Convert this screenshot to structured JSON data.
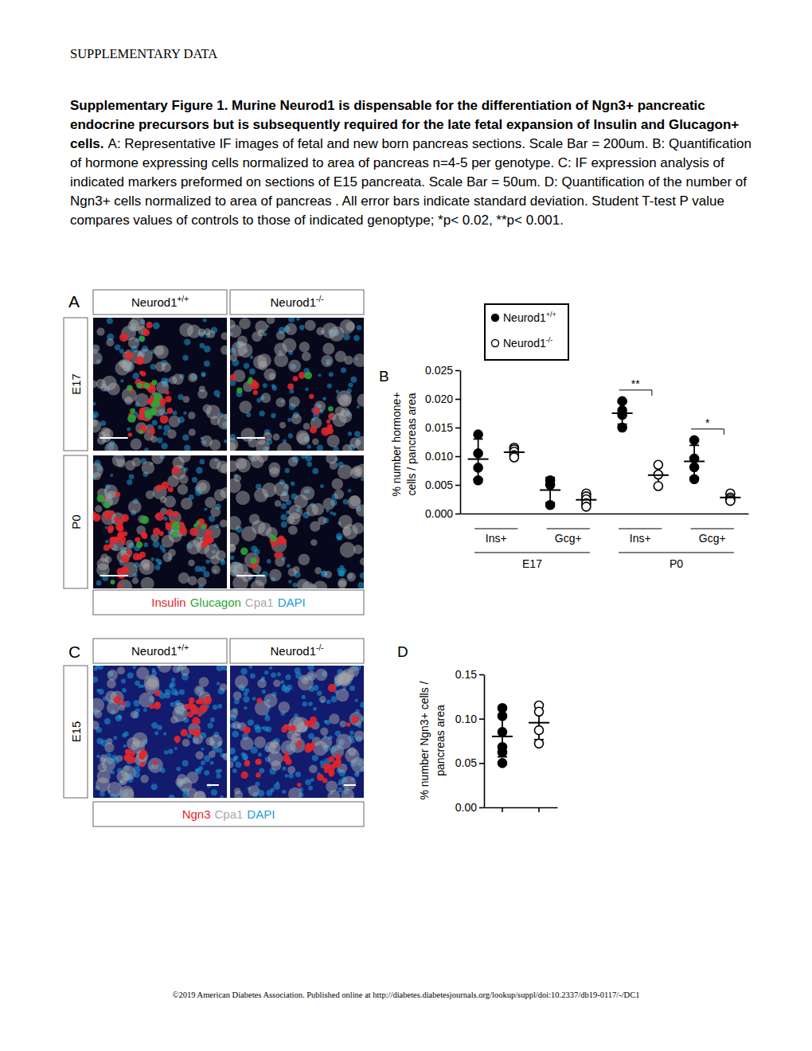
{
  "header": "SUPPLEMENTARY DATA",
  "caption": {
    "title": "Supplementary Figure 1. Murine Neurod1 is dispensable for the differentiation of Ngn3+ pancreatic endocrine precursors but is subsequently required for the late fetal expansion of Insulin and Glucagon+ cells.",
    "body": "A: Representative IF images of fetal and new born pancreas sections. Scale Bar = 200um. B: Quantification of hormone expressing cells normalized to area of pancreas n=4-5 per genotype. C: IF expression analysis of indicated markers preformed on sections of E15 pancreata. Scale Bar = 50um. D: Quantification of the number of Ngn3+ cells normalized to area of pancreas . All error bars indicate standard deviation.  Student T-test P value compares values of controls to  those of indicated genoptype; *p< 0.02, **p< 0.001."
  },
  "panel_a": {
    "label": "A",
    "columns": [
      {
        "name": "Neurod1",
        "sup": "+/+"
      },
      {
        "name": "Neurod1",
        "sup": "-/-"
      }
    ],
    "rows": [
      "E17",
      "P0"
    ],
    "stains": [
      {
        "name": "Insulin",
        "color": "#e3262b"
      },
      {
        "name": "Glucagon",
        "color": "#2ca636"
      },
      {
        "name": "Cpa1",
        "color": "#a8a8a8"
      },
      {
        "name": "DAPI",
        "color": "#1e9ad6"
      }
    ]
  },
  "panel_c": {
    "label": "C",
    "columns": [
      {
        "name": "Neurod1",
        "sup": "+/+"
      },
      {
        "name": "Neurod1",
        "sup": "-/-"
      }
    ],
    "rows": [
      "E15"
    ],
    "stains": [
      {
        "name": "Ngn3",
        "color": "#e3262b"
      },
      {
        "name": "Cpa1",
        "color": "#a8a8a8"
      },
      {
        "name": "DAPI",
        "color": "#1e9ad6"
      }
    ]
  },
  "chart_data": [
    {
      "type": "scatter",
      "title": "B",
      "y_label": [
        "% number hormone+",
        "cells / pancreas area"
      ],
      "groups": [
        {
          "label": "E17",
          "categories": [
            "Ins+",
            "Gcg+"
          ],
          "significance": [
            null,
            null
          ]
        },
        {
          "label": "P0",
          "categories": [
            "Ins+",
            "Gcg+"
          ],
          "significance": [
            "**",
            "*"
          ]
        }
      ],
      "ylim": [
        0,
        0.025
      ],
      "yticks": [
        {
          "value": 0,
          "label": "0.000"
        },
        0.005,
        {
          "value": 0.01,
          "label": "0.010"
        },
        0.015,
        {
          "value": 0.02,
          "label": "0.020"
        },
        0.025
      ],
      "legend": "top",
      "series": [
        {
          "name": "Neurod1",
          "name_sup": "+/+",
          "color": "#000000",
          "marker": "circle",
          "values": [
            [
              0.0138,
              0.0105,
              0.008,
              0.0058
            ],
            [
              0.0058,
              0.005,
              0.0015
            ],
            [
              0.0196,
              0.018,
              0.0172,
              0.015
            ],
            [
              0.0128,
              0.0096,
              0.0081,
              0.006
            ]
          ],
          "mean": [
            0.0095,
            0.0041,
            0.0175,
            0.0091
          ],
          "sd": [
            0.0035,
            0.0022,
            0.0019,
            0.0028
          ]
        },
        {
          "name": "Neurod1",
          "name_sup": "-/-",
          "color": "#000000",
          "marker": "open-circle",
          "values": [
            [
              0.0115,
              0.0112,
              0.0108,
              0.0102,
              0.0098
            ],
            [
              0.0035,
              0.003,
              0.0025,
              0.0018,
              0.0012
            ],
            [
              0.0085,
              0.0068,
              0.0048
            ],
            [
              0.0035,
              0.0028,
              0.0025,
              0.0022
            ]
          ],
          "mean": [
            0.0107,
            0.0024,
            0.0067,
            0.0028
          ],
          "sd": [
            0.0007,
            0.0009,
            0.0019,
            0.0006
          ]
        }
      ]
    },
    {
      "type": "scatter",
      "title": "D",
      "y_label": [
        "% number Ngn3+ cells /",
        "pancreas area"
      ],
      "categories": [
        null
      ],
      "tick_labels": "y",
      "ylim": [
        0,
        0.15
      ],
      "yticks": [
        {
          "value": 0,
          "label": "0.00"
        },
        0.05,
        {
          "value": 0.1,
          "label": "0.10"
        },
        0.15
      ],
      "series": [
        {
          "color": "#000000",
          "marker": "circle",
          "values": [
            [
              0.112,
              0.103,
              0.085,
              0.068,
              0.062,
              0.05
            ]
          ],
          "mean": [
            0.08
          ],
          "sd": [
            0.023
          ]
        },
        {
          "color": "#000000",
          "marker": "open-circle",
          "values": [
            [
              0.115,
              0.108,
              0.087,
              0.072
            ]
          ],
          "mean": [
            0.0955
          ],
          "sd": [
            0.019
          ]
        }
      ]
    }
  ],
  "footer": "©2019 American Diabetes Association. Published online at http://diabetes.diabetesjournals.org/lookup/suppl/doi:10.2337/db19-0117/-/DC1"
}
